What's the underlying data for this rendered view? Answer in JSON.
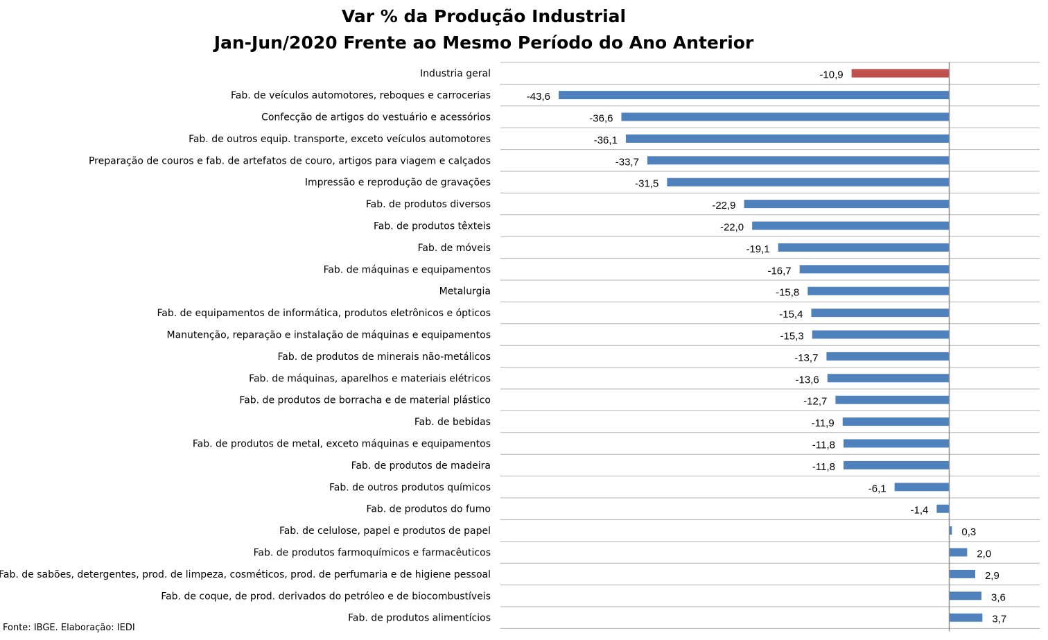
{
  "chart_data": {
    "type": "bar",
    "orientation": "horizontal",
    "title_line1": "Var % da Produção Industrial",
    "title_line2": "Jan-Jun/2020 Frente ao Mesmo Período do Ano Anterior",
    "source": "Fonte: IBGE. Elaboração: IEDI",
    "xlim": [
      -45,
      6
    ],
    "grid": true,
    "highlight_color": "#C0504D",
    "bar_color": "#4F81BD",
    "categories": [
      "Industria geral",
      "Fab. de veículos automotores, reboques e carrocerias",
      "Confecção de artigos do vestuário e acessórios",
      "Fab. de outros equip. transporte, exceto veículos automotores",
      "Preparação de couros e fab. de artefatos de couro, artigos para viagem e calçados",
      "Impressão e reprodução de gravações",
      "Fab. de produtos diversos",
      "Fab. de produtos têxteis",
      "Fab. de móveis",
      "Fab. de máquinas e equipamentos",
      "Metalurgia",
      "Fab. de equipamentos de informática, produtos eletrônicos e ópticos",
      "Manutenção, reparação e instalação de máquinas e equipamentos",
      "Fab. de produtos de minerais não-metálicos",
      "Fab. de máquinas, aparelhos e materiais elétricos",
      "Fab. de produtos de borracha e de material plástico",
      "Fab. de bebidas",
      "Fab. de produtos de metal, exceto máquinas e equipamentos",
      "Fab. de produtos de madeira",
      "Fab. de outros produtos químicos",
      "Fab. de produtos do fumo",
      "Fab. de celulose, papel e produtos de papel",
      "Fab. de produtos farmoquímicos e farmacêuticos",
      "Fab. de sabões, detergentes, prod. de limpeza, cosméticos, prod. de perfumaria e de higiene pessoal",
      "Fab. de coque, de prod. derivados do petróleo e de biocombustíveis",
      "Fab. de produtos alimentícios"
    ],
    "values": [
      -10.9,
      -43.6,
      -36.6,
      -36.1,
      -33.7,
      -31.5,
      -22.9,
      -22.0,
      -19.1,
      -16.7,
      -15.8,
      -15.4,
      -15.3,
      -13.7,
      -13.6,
      -12.7,
      -11.9,
      -11.8,
      -11.8,
      -6.1,
      -1.4,
      0.3,
      2.0,
      2.9,
      3.6,
      3.7
    ],
    "value_labels": [
      "-10,9",
      "-43,6",
      "-36,6",
      "-36,1",
      "-33,7",
      "-31,5",
      "-22,9",
      "-22,0",
      "-19,1",
      "-16,7",
      "-15,8",
      "-15,4",
      "-15,3",
      "-13,7",
      "-13,6",
      "-12,7",
      "-11,9",
      "-11,8",
      "-11,8",
      "-6,1",
      "-1,4",
      "0,3",
      "2,0",
      "2,9",
      "3,6",
      "3,7"
    ],
    "highlight_index": 0
  }
}
